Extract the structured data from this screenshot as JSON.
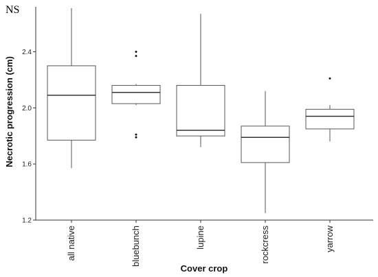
{
  "chart_data": {
    "type": "box",
    "annotation": "NS",
    "xlabel": "Cover crop",
    "ylabel": "Necrotic progression (cm)",
    "ylim": [
      1.2,
      2.72
    ],
    "yticks": [
      1.2,
      1.6,
      2.0,
      2.4
    ],
    "ytick_labels": [
      "1.2",
      "1.6",
      "2.0",
      "2.4"
    ],
    "grid": false,
    "categories": [
      "all native",
      "bluebunch",
      "lupine",
      "rockcress",
      "yarrow"
    ],
    "boxes": [
      {
        "category": "all native",
        "min": 1.57,
        "q1": 1.77,
        "median": 2.09,
        "q3": 2.3,
        "max": 2.71,
        "outliers": []
      },
      {
        "category": "bluebunch",
        "min": 2.02,
        "q1": 2.03,
        "median": 2.11,
        "q3": 2.16,
        "max": 2.17,
        "outliers": [
          1.79,
          1.81,
          2.37,
          2.4
        ]
      },
      {
        "category": "lupine",
        "min": 1.72,
        "q1": 1.8,
        "median": 1.84,
        "q3": 2.16,
        "max": 2.67,
        "outliers": []
      },
      {
        "category": "rockcress",
        "min": 1.25,
        "q1": 1.61,
        "median": 1.79,
        "q3": 1.87,
        "max": 2.12,
        "outliers": []
      },
      {
        "category": "yarrow",
        "min": 1.76,
        "q1": 1.85,
        "median": 1.94,
        "q3": 1.99,
        "max": 2.02,
        "outliers": [
          2.21
        ]
      }
    ]
  }
}
